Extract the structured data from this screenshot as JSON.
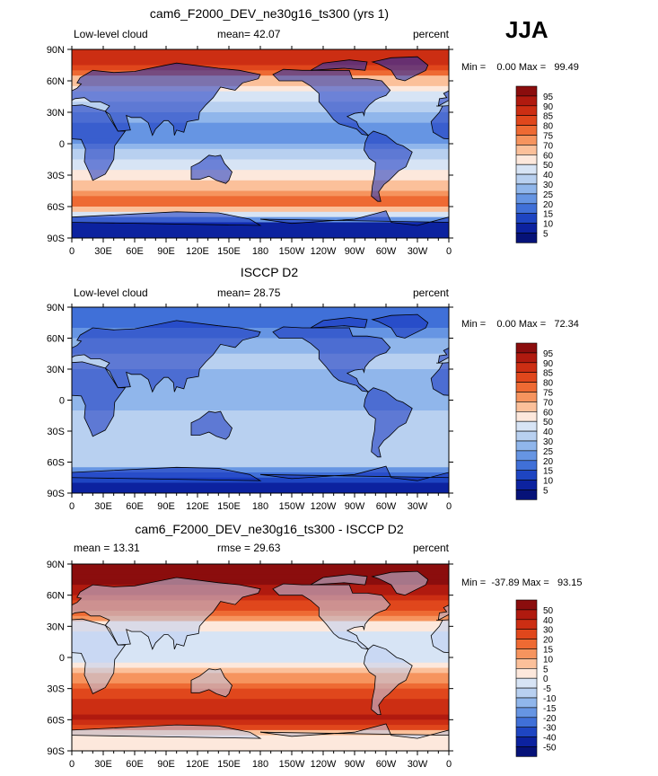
{
  "season": "JJA",
  "chart_data": [
    {
      "type": "heatmap",
      "title": "cam6_F2000_DEV_ne30g16_ts300 (yrs 1)",
      "left_label": "Low-level cloud",
      "mid_label": "mean=  42.07",
      "right_label": "percent",
      "minmax": "Min =    0.00 Max =   99.49",
      "stats": {
        "mean": 42.07,
        "min": 0.0,
        "max": 99.49
      },
      "x_ticks": [
        "0",
        "30E",
        "60E",
        "90E",
        "120E",
        "150E",
        "180",
        "150W",
        "120W",
        "90W",
        "60W",
        "30W",
        "0"
      ],
      "y_ticks": [
        "90N",
        "60N",
        "30N",
        "0",
        "30S",
        "60S",
        "90S"
      ],
      "x_range": [
        0,
        360
      ],
      "y_range": [
        -90,
        90
      ],
      "colorbar": {
        "levels": [
          "95",
          "90",
          "85",
          "80",
          "75",
          "70",
          "60",
          "50",
          "40",
          "30",
          "25",
          "20",
          "15",
          "10",
          "5"
        ],
        "colors": [
          "#8b0d0d",
          "#b01a0f",
          "#cc2e13",
          "#e0471c",
          "#ee6a33",
          "#f6945e",
          "#fbc09a",
          "#fde8dc",
          "#d7e4f5",
          "#b8d0f0",
          "#90b6eb",
          "#6695e3",
          "#4070d8",
          "#1e45c2",
          "#0c229f",
          "#061278"
        ]
      },
      "zonal_profile": [
        {
          "lat": 90,
          "value": 88
        },
        {
          "lat": 75,
          "value": 85
        },
        {
          "lat": 60,
          "value": 65
        },
        {
          "lat": 45,
          "value": 45
        },
        {
          "lat": 30,
          "value": 30
        },
        {
          "lat": 15,
          "value": 22
        },
        {
          "lat": 0,
          "value": 25
        },
        {
          "lat": -15,
          "value": 40
        },
        {
          "lat": -30,
          "value": 55
        },
        {
          "lat": -45,
          "value": 72
        },
        {
          "lat": -60,
          "value": 80
        },
        {
          "lat": -75,
          "value": 10
        },
        {
          "lat": -90,
          "value": 5
        }
      ]
    },
    {
      "type": "heatmap",
      "title": "ISCCP D2",
      "left_label": "Low-level cloud",
      "mid_label": "mean=  28.75",
      "right_label": "percent",
      "minmax": "Min =    0.00 Max =   72.34",
      "stats": {
        "mean": 28.75,
        "min": 0.0,
        "max": 72.34
      },
      "x_ticks": [
        "0",
        "30E",
        "60E",
        "90E",
        "120E",
        "150E",
        "180",
        "150W",
        "120W",
        "90W",
        "60W",
        "30W",
        "0"
      ],
      "y_ticks": [
        "90N",
        "60N",
        "30N",
        "0",
        "30S",
        "60S",
        "90S"
      ],
      "x_range": [
        0,
        360
      ],
      "y_range": [
        -90,
        90
      ],
      "colorbar": {
        "levels": [
          "95",
          "90",
          "85",
          "80",
          "75",
          "70",
          "60",
          "50",
          "40",
          "30",
          "25",
          "20",
          "15",
          "10",
          "5"
        ],
        "colors": [
          "#8b0d0d",
          "#b01a0f",
          "#cc2e13",
          "#e0471c",
          "#ee6a33",
          "#f6945e",
          "#fbc09a",
          "#fde8dc",
          "#d7e4f5",
          "#b8d0f0",
          "#90b6eb",
          "#6695e3",
          "#4070d8",
          "#1e45c2",
          "#0c229f",
          "#061278"
        ]
      },
      "zonal_profile": [
        {
          "lat": 90,
          "value": 15
        },
        {
          "lat": 75,
          "value": 18
        },
        {
          "lat": 60,
          "value": 25
        },
        {
          "lat": 45,
          "value": 30
        },
        {
          "lat": 30,
          "value": 30
        },
        {
          "lat": 15,
          "value": 28
        },
        {
          "lat": 0,
          "value": 27
        },
        {
          "lat": -15,
          "value": 32
        },
        {
          "lat": -30,
          "value": 36
        },
        {
          "lat": -45,
          "value": 40
        },
        {
          "lat": -60,
          "value": 35
        },
        {
          "lat": -75,
          "value": 12
        },
        {
          "lat": -90,
          "value": 5
        }
      ]
    },
    {
      "type": "heatmap",
      "title": "cam6_F2000_DEV_ne30g16_ts300 - ISCCP D2",
      "left_label": "mean =   13.31",
      "mid_label": "rmse =   29.63",
      "right_label": "percent",
      "minmax": "Min =  -37.89 Max =   93.15",
      "stats": {
        "mean": 13.31,
        "rmse": 29.63,
        "min": -37.89,
        "max": 93.15
      },
      "x_ticks": [
        "0",
        "30E",
        "60E",
        "90E",
        "120E",
        "150E",
        "180",
        "150W",
        "120W",
        "90W",
        "60W",
        "30W",
        "0"
      ],
      "y_ticks": [
        "90N",
        "60N",
        "30N",
        "0",
        "30S",
        "60S",
        "90S"
      ],
      "x_range": [
        0,
        360
      ],
      "y_range": [
        -90,
        90
      ],
      "colorbar": {
        "levels": [
          "50",
          "40",
          "30",
          "20",
          "15",
          "10",
          "5",
          "0",
          "-5",
          "-10",
          "-15",
          "-20",
          "-30",
          "-40",
          "-50"
        ],
        "colors": [
          "#8b0d0d",
          "#b01a0f",
          "#cc2e13",
          "#e0471c",
          "#ee6a33",
          "#f6945e",
          "#fbc09a",
          "#fde8dc",
          "#d7e4f5",
          "#b8d0f0",
          "#90b6eb",
          "#6695e3",
          "#4070d8",
          "#1e45c2",
          "#0c229f",
          "#061278"
        ]
      },
      "zonal_profile": [
        {
          "lat": 90,
          "value": 60
        },
        {
          "lat": 75,
          "value": 55
        },
        {
          "lat": 60,
          "value": 40
        },
        {
          "lat": 45,
          "value": 18
        },
        {
          "lat": 30,
          "value": 2
        },
        {
          "lat": 15,
          "value": -5
        },
        {
          "lat": 0,
          "value": -2
        },
        {
          "lat": -15,
          "value": 8
        },
        {
          "lat": -30,
          "value": 20
        },
        {
          "lat": -45,
          "value": 32
        },
        {
          "lat": -60,
          "value": 45
        },
        {
          "lat": -75,
          "value": 0
        },
        {
          "lat": -90,
          "value": 0
        }
      ]
    }
  ]
}
